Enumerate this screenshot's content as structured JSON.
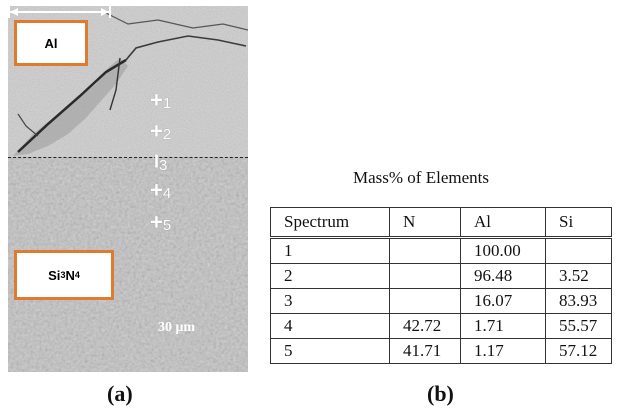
{
  "figure": {
    "panel_a": {
      "caption": "(a)",
      "label_top": "Al",
      "label_bottom": {
        "main": "Si",
        "sub1": "3",
        "mid": "N",
        "sub2": "4"
      },
      "scale_bar": "30 μm",
      "markers": [
        {
          "symbol": "+",
          "number": "1"
        },
        {
          "symbol": "+",
          "number": "2"
        },
        {
          "symbol": "I",
          "number": "3"
        },
        {
          "symbol": "+",
          "number": "4"
        },
        {
          "symbol": "+",
          "number": "5"
        }
      ]
    },
    "panel_b": {
      "caption": "(b)",
      "table_title": "Mass% of Elements",
      "columns": [
        "Spectrum",
        "N",
        "Al",
        "Si"
      ],
      "rows": [
        [
          "1",
          "",
          "100.00",
          ""
        ],
        [
          "2",
          "",
          "96.48",
          "3.52"
        ],
        [
          "3",
          "",
          "16.07",
          "83.93"
        ],
        [
          "4",
          "42.72",
          "1.71",
          "55.57"
        ],
        [
          "5",
          "41.71",
          "1.17",
          "57.12"
        ]
      ]
    }
  },
  "colors": {
    "label_border": "#e07a2e",
    "micrograph": "#c9c9c9"
  }
}
